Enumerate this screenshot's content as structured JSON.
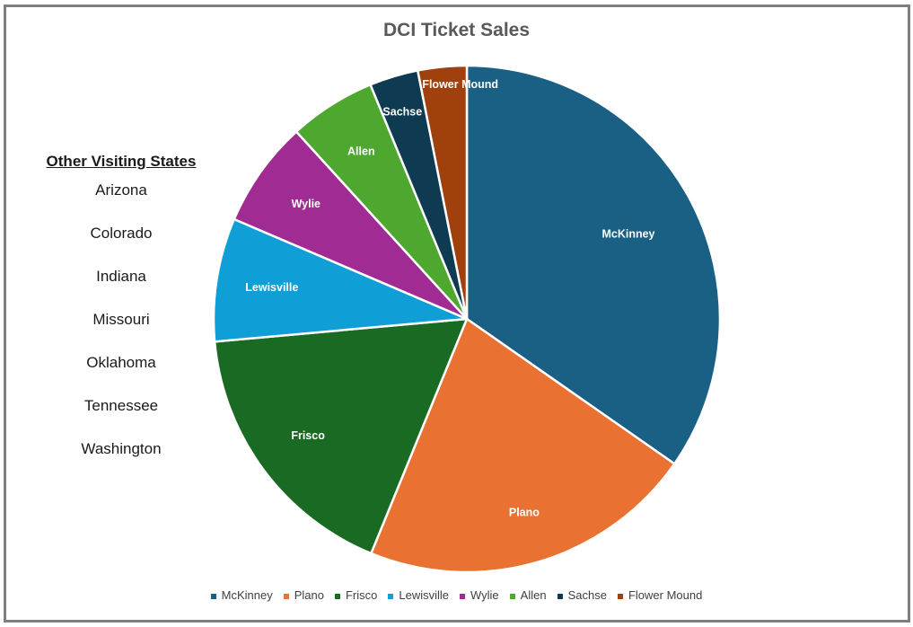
{
  "chart_data": {
    "type": "pie",
    "title": "DCI Ticket Sales",
    "categories": [
      "McKinney",
      "Plano",
      "Frisco",
      "Lewisville",
      "Wylie",
      "Allen",
      "Sachse",
      "Flower Mound"
    ],
    "values": [
      35.7,
      22.1,
      17.9,
      8.1,
      7.0,
      5.7,
      3.2,
      3.2
    ],
    "colors": [
      "#1a5f84",
      "#e97132",
      "#196b24",
      "#0f9ed5",
      "#a02b93",
      "#4ea72e",
      "#0e3a52",
      "#a0410d"
    ],
    "data_labels": [
      "McKinney",
      "Plano",
      "Frisco",
      "Lewisville",
      "Wylie",
      "Allen",
      "Sachse",
      "Flower Mound"
    ],
    "legend_position": "bottom",
    "start_angle_deg": 0,
    "direction": "clockwise"
  },
  "states_panel": {
    "heading": "Other Visiting States",
    "states": [
      "Arizona",
      "Colorado",
      "Indiana",
      "Missouri",
      "Oklahoma",
      "Tennessee",
      "Washington"
    ]
  }
}
